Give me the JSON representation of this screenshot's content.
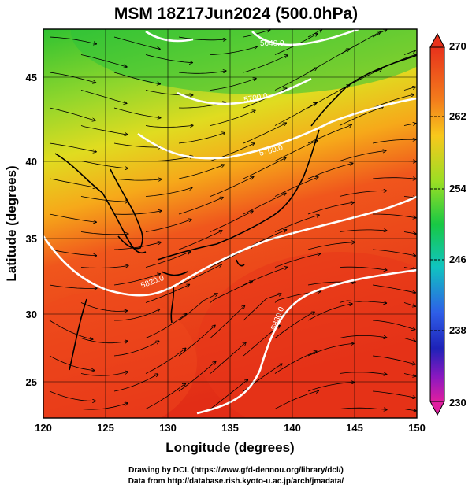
{
  "title": "MSM 18Z17Jun2024 (500.0hPa)",
  "axes": {
    "xlabel": "Longitude (degrees)",
    "ylabel": "Latitude  (degrees)",
    "x_ticks": [
      "120",
      "125",
      "130",
      "135",
      "140",
      "145",
      "150"
    ],
    "y_ticks": [
      "25",
      "30",
      "35",
      "40",
      "45"
    ]
  },
  "colorbar": {
    "ticks": [
      "270",
      "262",
      "254",
      "246",
      "238",
      "230"
    ],
    "min": 230,
    "max": 270
  },
  "contour_labels": [
    "5880.0",
    "5820.0",
    "5760.0",
    "5700.0",
    "5640.0"
  ],
  "credits": {
    "line1": "Drawing by DCL (https://www.gfd-dennou.org/library/dcl/)",
    "line2": "Data from http://database.rish.kyoto-u.ac.jp/arch/jmadata/"
  },
  "colors": {
    "warm": "#e8361a",
    "mid": "#f7a21b",
    "cool": "#4cc43a",
    "contour": "#ffffff",
    "streamline": "#000000"
  },
  "icons": [
    "colorbar-up-arrow-icon",
    "colorbar-down-arrow-icon"
  ]
}
